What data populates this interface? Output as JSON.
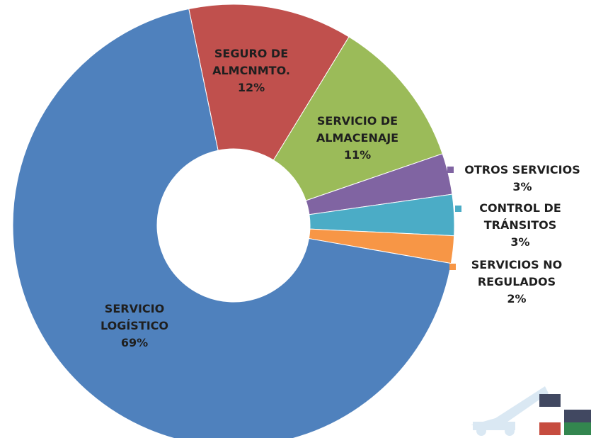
{
  "chart_data": {
    "type": "donut",
    "categories": [
      "SEGURO DE ALMCNMTO.",
      "SERVICIO DE ALMACENAJE",
      "OTROS SERVICIOS",
      "CONTROL DE TRÁNSITOS",
      "SERVICIOS NO REGULADOS",
      "SERVICIO LOGÍSTICO"
    ],
    "values": [
      12,
      11,
      3,
      3,
      2,
      69
    ],
    "value_labels": [
      "12%",
      "11%",
      "3%",
      "3%",
      "2%",
      "69%"
    ],
    "colors": [
      "#c0504d",
      "#9bbb59",
      "#8064a2",
      "#4bacc6",
      "#f79646",
      "#4f81bd"
    ]
  }
}
